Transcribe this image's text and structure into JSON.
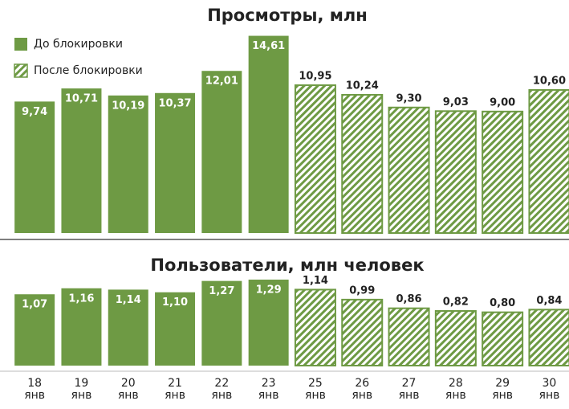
{
  "chart_data": {
    "type": "bar",
    "categories": [
      "18 янв",
      "19 янв",
      "20 янв",
      "21 янв",
      "22 янв",
      "23 янв",
      "25 янв",
      "26 янв",
      "27 янв",
      "28 янв",
      "29 янв",
      "30 янв"
    ],
    "legend": "top-left",
    "series": [
      {
        "name": "До блокировки",
        "color": "#6e9a44",
        "pattern": "solid"
      },
      {
        "name": "После блокировки",
        "color": "#6e9a44",
        "pattern": "hatch"
      }
    ],
    "panels": [
      {
        "title": "Просмотры, млн",
        "ylim": [
          0,
          15
        ],
        "series": [
          {
            "values": [
              9.74,
              10.71,
              10.19,
              10.37,
              12.01,
              14.61,
              null,
              null,
              null,
              null,
              null,
              null
            ],
            "value_labels": [
              "9,74",
              "10,71",
              "10,19",
              "10,37",
              "12,01",
              "14,61",
              null,
              null,
              null,
              null,
              null,
              null
            ]
          },
          {
            "values": [
              null,
              null,
              null,
              null,
              null,
              null,
              10.95,
              10.24,
              9.3,
              9.03,
              9.0,
              10.6
            ],
            "value_labels": [
              null,
              null,
              null,
              null,
              null,
              null,
              "10,95",
              "10,24",
              "9,30",
              "9,03",
              "9,00",
              "10,60"
            ]
          }
        ]
      },
      {
        "title": "Пользователи, млн человек",
        "ylim": [
          0,
          1.35
        ],
        "series": [
          {
            "values": [
              1.07,
              1.16,
              1.14,
              1.1,
              1.27,
              1.29,
              null,
              null,
              null,
              null,
              null,
              null
            ],
            "value_labels": [
              "1,07",
              "1,16",
              "1,14",
              "1,10",
              "1,27",
              "1,29",
              null,
              null,
              null,
              null,
              null,
              null
            ]
          },
          {
            "values": [
              null,
              null,
              null,
              null,
              null,
              null,
              1.14,
              0.99,
              0.86,
              0.82,
              0.8,
              0.84
            ],
            "value_labels": [
              null,
              null,
              null,
              null,
              null,
              null,
              "1,14",
              "0,99",
              "0,86",
              "0,82",
              "0,80",
              "0,84"
            ]
          }
        ]
      }
    ]
  }
}
